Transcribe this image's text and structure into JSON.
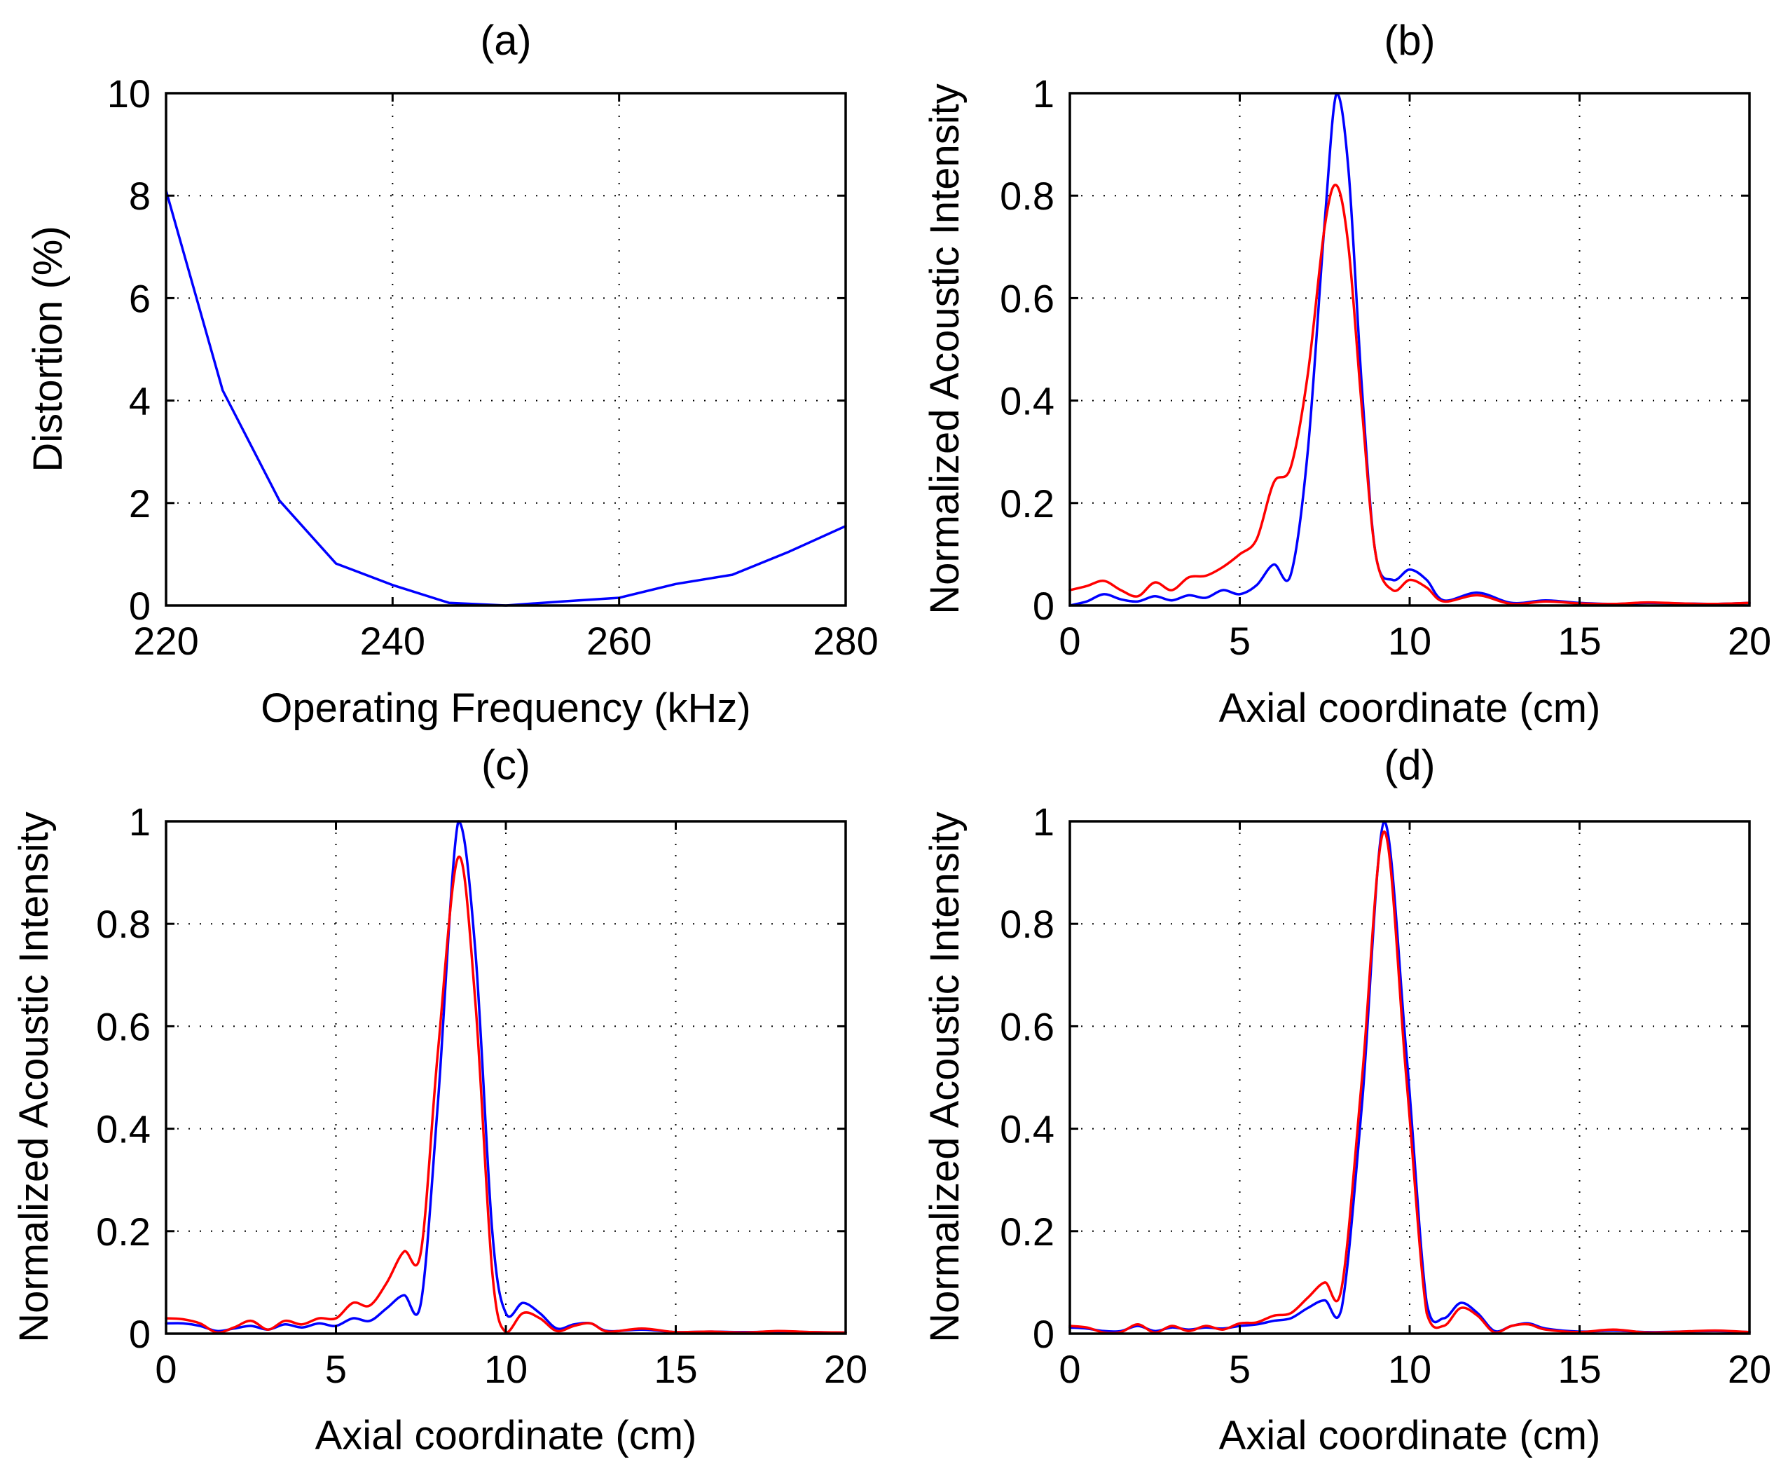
{
  "chart_data": [
    {
      "id": "a",
      "type": "line",
      "title": "(a)",
      "xlabel": "Operating Frequency (kHz)",
      "ylabel": "Distortion (%)",
      "xlim": [
        220,
        280
      ],
      "ylim": [
        0,
        10
      ],
      "xticks": [
        220,
        240,
        260,
        280
      ],
      "yticks": [
        0,
        2,
        4,
        6,
        8,
        10
      ],
      "xtick_labels": [
        "220",
        "240",
        "260",
        "280"
      ],
      "ytick_labels": [
        "0",
        "2",
        "4",
        "6",
        "8",
        "10"
      ],
      "grid": true,
      "series": [
        {
          "name": "Distortion",
          "color": "#0000ff",
          "x": [
            220,
            225,
            230,
            235,
            240,
            245,
            250,
            255,
            260,
            265,
            270,
            275,
            280
          ],
          "y": [
            8.1,
            4.2,
            2.05,
            0.82,
            0.4,
            0.05,
            0.0,
            0.08,
            0.15,
            0.42,
            0.6,
            1.05,
            1.55
          ]
        }
      ]
    },
    {
      "id": "b",
      "type": "line",
      "title": "(b)",
      "xlabel": "Axial coordinate (cm)",
      "ylabel": "Normalized Acoustic Intensity",
      "xlim": [
        0,
        20
      ],
      "ylim": [
        0,
        1
      ],
      "xticks": [
        0,
        5,
        10,
        15,
        20
      ],
      "yticks": [
        0,
        0.2,
        0.4,
        0.6,
        0.8,
        1
      ],
      "xtick_labels": [
        "0",
        "5",
        "10",
        "15",
        "20"
      ],
      "ytick_labels": [
        "0",
        "0.2",
        "0.4",
        "0.6",
        "0.8",
        "1"
      ],
      "grid": true,
      "series": [
        {
          "name": "blue",
          "color": "#0000ff",
          "x": [
            0,
            0.5,
            1,
            1.5,
            2,
            2.5,
            3,
            3.5,
            4,
            4.5,
            5,
            5.5,
            6,
            6.5,
            7,
            7.5,
            7.85,
            8.2,
            8.6,
            9,
            9.5,
            10,
            10.5,
            11,
            12,
            13,
            14,
            15,
            16,
            17,
            18,
            19,
            20
          ],
          "y": [
            0.0,
            0.008,
            0.022,
            0.012,
            0.008,
            0.018,
            0.01,
            0.02,
            0.015,
            0.03,
            0.022,
            0.04,
            0.08,
            0.06,
            0.3,
            0.75,
            1.0,
            0.85,
            0.42,
            0.1,
            0.05,
            0.07,
            0.05,
            0.01,
            0.025,
            0.005,
            0.01,
            0.005,
            0.003,
            0.005,
            0.004,
            0.003,
            0.005
          ]
        },
        {
          "name": "red",
          "color": "#ff0000",
          "x": [
            0,
            0.5,
            1,
            1.5,
            2,
            2.5,
            3,
            3.5,
            4,
            4.5,
            5,
            5.5,
            6,
            6.5,
            7,
            7.5,
            7.85,
            8.2,
            8.6,
            9,
            9.5,
            10,
            10.5,
            11,
            12,
            13,
            14,
            15,
            16,
            17,
            18,
            19,
            20
          ],
          "y": [
            0.03,
            0.038,
            0.048,
            0.03,
            0.018,
            0.045,
            0.03,
            0.055,
            0.058,
            0.075,
            0.1,
            0.13,
            0.24,
            0.27,
            0.45,
            0.74,
            0.82,
            0.7,
            0.38,
            0.1,
            0.03,
            0.05,
            0.035,
            0.008,
            0.02,
            0.003,
            0.008,
            0.004,
            0.003,
            0.006,
            0.004,
            0.003,
            0.005
          ]
        }
      ]
    },
    {
      "id": "c",
      "type": "line",
      "title": "(c)",
      "xlabel": "Axial coordinate (cm)",
      "ylabel": "Normalized Acoustic Intensity",
      "xlim": [
        0,
        20
      ],
      "ylim": [
        0,
        1
      ],
      "xticks": [
        0,
        5,
        10,
        15,
        20
      ],
      "yticks": [
        0,
        0.2,
        0.4,
        0.6,
        0.8,
        1
      ],
      "xtick_labels": [
        "0",
        "5",
        "10",
        "15",
        "20"
      ],
      "ytick_labels": [
        "0",
        "0.2",
        "0.4",
        "0.6",
        "0.8",
        "1"
      ],
      "grid": true,
      "series": [
        {
          "name": "blue",
          "color": "#0000ff",
          "x": [
            0,
            0.5,
            1,
            1.5,
            2,
            2.5,
            3,
            3.5,
            4,
            4.5,
            5,
            5.5,
            6,
            6.5,
            7,
            7.5,
            8,
            8.6,
            9.1,
            9.6,
            10,
            10.5,
            11,
            11.5,
            12,
            12.5,
            13,
            14,
            15,
            16,
            17,
            18,
            19,
            20
          ],
          "y": [
            0.02,
            0.02,
            0.015,
            0.005,
            0.01,
            0.015,
            0.008,
            0.018,
            0.012,
            0.02,
            0.015,
            0.03,
            0.025,
            0.05,
            0.075,
            0.06,
            0.45,
            1.0,
            0.75,
            0.2,
            0.04,
            0.06,
            0.04,
            0.01,
            0.018,
            0.02,
            0.005,
            0.008,
            0.003,
            0.004,
            0.003,
            0.004,
            0.003,
            0.002
          ]
        },
        {
          "name": "red",
          "color": "#ff0000",
          "x": [
            0,
            0.5,
            1,
            1.5,
            2,
            2.5,
            3,
            3.5,
            4,
            4.5,
            5,
            5.5,
            6,
            6.5,
            7,
            7.5,
            8,
            8.6,
            9.1,
            9.6,
            10,
            10.5,
            11,
            11.5,
            12,
            12.5,
            13,
            14,
            15,
            16,
            17,
            18,
            19,
            20
          ],
          "y": [
            0.03,
            0.028,
            0.02,
            0.002,
            0.012,
            0.025,
            0.008,
            0.025,
            0.018,
            0.03,
            0.03,
            0.06,
            0.055,
            0.1,
            0.16,
            0.16,
            0.55,
            0.93,
            0.65,
            0.12,
            0.002,
            0.04,
            0.03,
            0.005,
            0.015,
            0.02,
            0.004,
            0.01,
            0.003,
            0.004,
            0.002,
            0.005,
            0.003,
            0.002
          ]
        }
      ]
    },
    {
      "id": "d",
      "type": "line",
      "title": "(d)",
      "xlabel": "Axial coordinate (cm)",
      "ylabel": "Normalized Acoustic Intensity",
      "xlim": [
        0,
        20
      ],
      "ylim": [
        0,
        1
      ],
      "xticks": [
        0,
        5,
        10,
        15,
        20
      ],
      "yticks": [
        0,
        0.2,
        0.4,
        0.6,
        0.8,
        1
      ],
      "xtick_labels": [
        "0",
        "5",
        "10",
        "15",
        "20"
      ],
      "ytick_labels": [
        "0",
        "0.2",
        "0.4",
        "0.6",
        "0.8",
        "1"
      ],
      "grid": true,
      "series": [
        {
          "name": "blue",
          "color": "#0000ff",
          "x": [
            0,
            0.5,
            1,
            1.5,
            2,
            2.5,
            3,
            3.5,
            4,
            4.5,
            5,
            5.5,
            6,
            6.5,
            7,
            7.5,
            8,
            8.6,
            9.25,
            9.9,
            10.5,
            11,
            11.5,
            12,
            12.5,
            13,
            13.5,
            14,
            15,
            16,
            17,
            18,
            19,
            20
          ],
          "y": [
            0.012,
            0.01,
            0.005,
            0.005,
            0.015,
            0.005,
            0.012,
            0.008,
            0.012,
            0.01,
            0.015,
            0.018,
            0.025,
            0.03,
            0.05,
            0.065,
            0.05,
            0.45,
            1.0,
            0.55,
            0.06,
            0.03,
            0.06,
            0.04,
            0.005,
            0.015,
            0.02,
            0.01,
            0.004,
            0.006,
            0.003,
            0.004,
            0.005,
            0.003
          ]
        },
        {
          "name": "red",
          "color": "#ff0000",
          "x": [
            0,
            0.5,
            1,
            1.5,
            2,
            2.5,
            3,
            3.5,
            4,
            4.5,
            5,
            5.5,
            6,
            6.5,
            7,
            7.5,
            8,
            8.6,
            9.25,
            9.9,
            10.5,
            11,
            11.5,
            12,
            12.5,
            13,
            13.5,
            14,
            15,
            16,
            17,
            18,
            19,
            20
          ],
          "y": [
            0.015,
            0.012,
            0.002,
            0.003,
            0.018,
            0.002,
            0.015,
            0.005,
            0.015,
            0.008,
            0.02,
            0.022,
            0.035,
            0.04,
            0.07,
            0.1,
            0.09,
            0.5,
            0.98,
            0.5,
            0.04,
            0.015,
            0.05,
            0.035,
            0.002,
            0.015,
            0.018,
            0.008,
            0.003,
            0.008,
            0.002,
            0.004,
            0.006,
            0.003
          ]
        }
      ]
    }
  ]
}
